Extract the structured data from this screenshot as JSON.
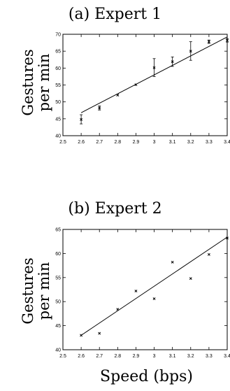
{
  "x_axis_label": "Speed (bps)",
  "chart_data": [
    {
      "type": "scatter",
      "title": "(a) Expert 1",
      "ylabel": [
        "Gestures",
        "per min"
      ],
      "xlabel": "",
      "xlim": [
        2.5,
        3.4
      ],
      "ylim": [
        40,
        70
      ],
      "xticks": [
        2.5,
        2.6,
        2.7,
        2.8,
        2.9,
        3,
        3.1,
        3.2,
        3.3,
        3.4
      ],
      "yticks": [
        40,
        45,
        50,
        55,
        60,
        65,
        70
      ],
      "grid": false,
      "points": [
        {
          "x": 2.6,
          "y": 44.8,
          "err_low": 43.5,
          "err_high": 46.2
        },
        {
          "x": 2.7,
          "y": 48.2,
          "err_low": 47.6,
          "err_high": 48.8
        },
        {
          "x": 2.8,
          "y": 52.0,
          "err_low": 52.0,
          "err_high": 52.0
        },
        {
          "x": 2.9,
          "y": 55.1,
          "err_low": 55.1,
          "err_high": 55.1
        },
        {
          "x": 3.0,
          "y": 60.1,
          "err_low": 57.5,
          "err_high": 62.8
        },
        {
          "x": 3.1,
          "y": 61.9,
          "err_low": 60.5,
          "err_high": 63.3
        },
        {
          "x": 3.2,
          "y": 65.0,
          "err_low": 62.3,
          "err_high": 67.8
        },
        {
          "x": 3.3,
          "y": 67.8,
          "err_low": 67.3,
          "err_high": 68.3
        },
        {
          "x": 3.4,
          "y": 68.2,
          "err_low": 67.7,
          "err_high": 68.7
        }
      ],
      "fit_line": [
        {
          "x": 2.6,
          "y": 46.8
        },
        {
          "x": 3.4,
          "y": 69.2
        }
      ]
    },
    {
      "type": "scatter",
      "title": "(b) Expert 2",
      "ylabel": [
        "Gestures",
        "per min"
      ],
      "xlabel": "",
      "xlim": [
        2.5,
        3.4
      ],
      "ylim": [
        40,
        65
      ],
      "xticks": [
        2.5,
        2.6,
        2.7,
        2.8,
        2.9,
        3,
        3.1,
        3.2,
        3.3,
        3.4
      ],
      "yticks": [
        40,
        45,
        50,
        55,
        60,
        65
      ],
      "grid": false,
      "points": [
        {
          "x": 2.6,
          "y": 43.0
        },
        {
          "x": 2.7,
          "y": 43.4
        },
        {
          "x": 2.8,
          "y": 48.4
        },
        {
          "x": 2.9,
          "y": 52.2
        },
        {
          "x": 3.0,
          "y": 50.6
        },
        {
          "x": 3.1,
          "y": 58.2
        },
        {
          "x": 3.2,
          "y": 54.8
        },
        {
          "x": 3.3,
          "y": 59.8
        },
        {
          "x": 3.4,
          "y": 63.2
        }
      ],
      "fit_line": [
        {
          "x": 2.6,
          "y": 43.0
        },
        {
          "x": 3.4,
          "y": 63.4
        }
      ]
    }
  ]
}
